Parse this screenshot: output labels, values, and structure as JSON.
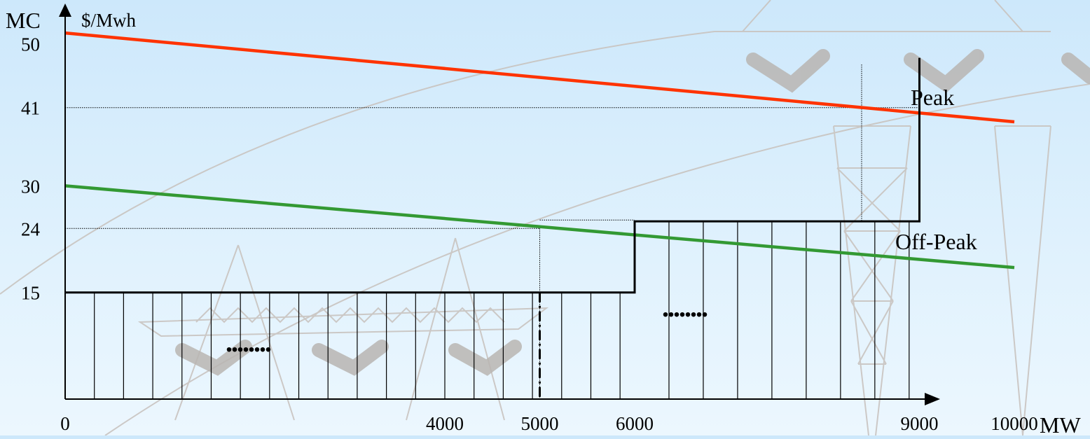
{
  "chart_data": {
    "type": "line",
    "title": "",
    "ylabel": "MC",
    "yunit": "$/Mwh",
    "xunit": "MW",
    "xlim": [
      0,
      10000
    ],
    "ylim": [
      0,
      52
    ],
    "x_ticks": [
      "0",
      "4000",
      "5000",
      "6000",
      "9000",
      "10000"
    ],
    "y_ticks": [
      "15",
      "24",
      "30",
      "41",
      "50"
    ],
    "series": [
      {
        "name": "Peak",
        "color": "#ff3300",
        "points": [
          [
            0,
            51.5
          ],
          [
            10000,
            39
          ]
        ]
      },
      {
        "name": "Off-Peak",
        "color": "#339933",
        "points": [
          [
            0,
            30
          ],
          [
            10000,
            18.5
          ]
        ]
      },
      {
        "name": "",
        "color": "#000000",
        "points": [
          [
            0,
            15
          ],
          [
            6000,
            15
          ],
          [
            6000,
            25
          ],
          [
            9000,
            25
          ],
          [
            9000,
            48
          ]
        ]
      }
    ],
    "reference_lines": [
      {
        "y": 41,
        "x_to": 9000
      },
      {
        "y": 24,
        "x_to": 5000
      }
    ],
    "ellipsis": [
      "........",
      "........"
    ]
  }
}
